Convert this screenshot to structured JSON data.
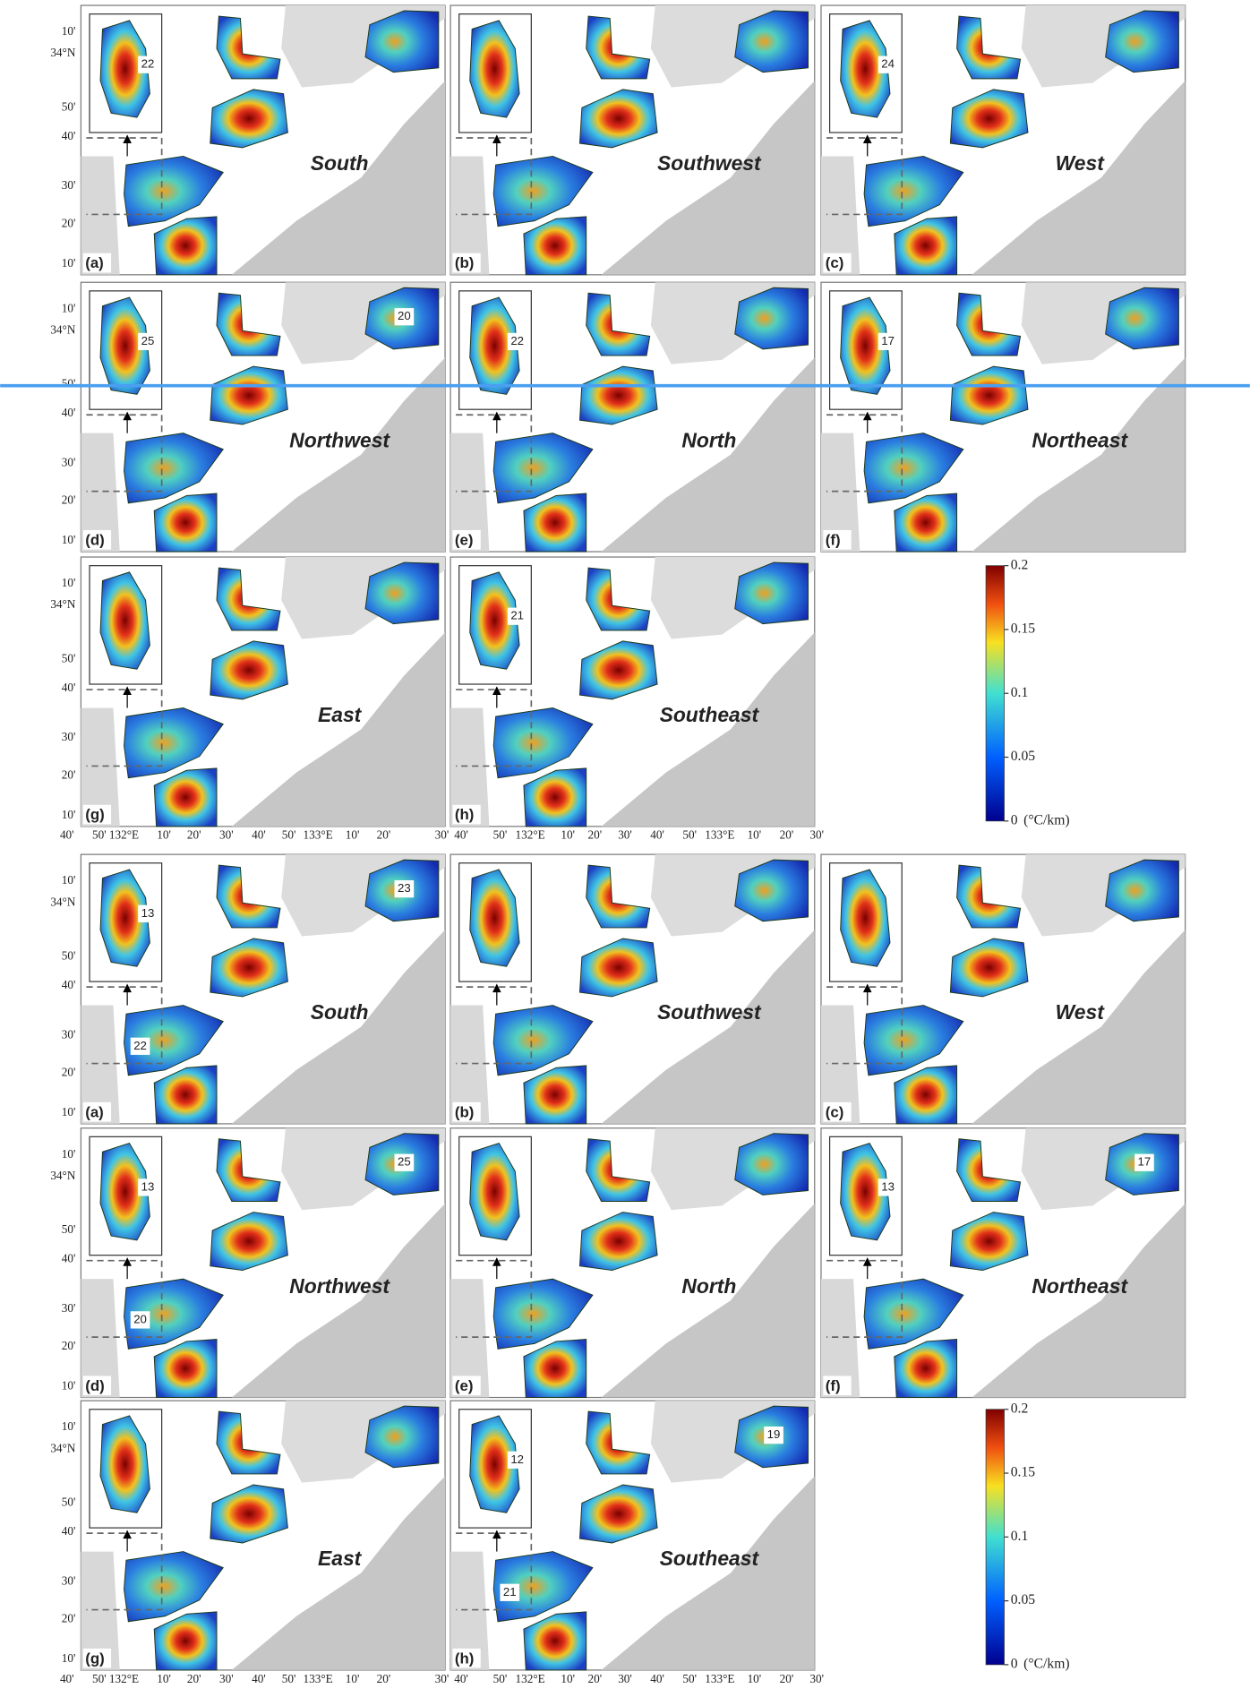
{
  "figures": [
    {
      "panels": [
        {
          "letter": "(a)",
          "direction": "South",
          "contour_labels": [
            "22"
          ]
        },
        {
          "letter": "(b)",
          "direction": "Southwest",
          "contour_labels": []
        },
        {
          "letter": "(c)",
          "direction": "West",
          "contour_labels": [
            "24"
          ]
        },
        {
          "letter": "(d)",
          "direction": "Northwest",
          "contour_labels": [
            "25",
            "20"
          ]
        },
        {
          "letter": "(e)",
          "direction": "North",
          "contour_labels": [
            "22"
          ]
        },
        {
          "letter": "(f)",
          "direction": "Northeast",
          "contour_labels": [
            "17"
          ]
        },
        {
          "letter": "(g)",
          "direction": "East",
          "contour_labels": []
        },
        {
          "letter": "(h)",
          "direction": "Southeast",
          "contour_labels": [
            "21"
          ]
        }
      ],
      "y_axis_labels": [
        "10'",
        "34°N",
        "50'",
        "40'",
        "30'",
        "20'",
        "10'"
      ],
      "x_axis_labels": [
        "40'",
        "50'",
        "132°E",
        "10'",
        "20'",
        "30'",
        "40'",
        "50'",
        "133°E",
        "10'",
        "20'",
        "30'"
      ],
      "colorbar": {
        "ticks": [
          0.2,
          0.15,
          0.1,
          0.05,
          0
        ],
        "unit": "(°C/km)"
      }
    },
    {
      "panels": [
        {
          "letter": "(a)",
          "direction": "South",
          "contour_labels": [
            "13",
            "23",
            "22"
          ]
        },
        {
          "letter": "(b)",
          "direction": "Southwest",
          "contour_labels": []
        },
        {
          "letter": "(c)",
          "direction": "West",
          "contour_labels": []
        },
        {
          "letter": "(d)",
          "direction": "Northwest",
          "contour_labels": [
            "13",
            "25",
            "20"
          ]
        },
        {
          "letter": "(e)",
          "direction": "North",
          "contour_labels": []
        },
        {
          "letter": "(f)",
          "direction": "Northeast",
          "contour_labels": [
            "13",
            "17"
          ]
        },
        {
          "letter": "(g)",
          "direction": "East",
          "contour_labels": []
        },
        {
          "letter": "(h)",
          "direction": "Southeast",
          "contour_labels": [
            "12",
            "19",
            "21"
          ]
        }
      ],
      "y_axis_labels": [
        "10'",
        "34°N",
        "50'",
        "40'",
        "30'",
        "20'",
        "10'"
      ],
      "x_axis_labels": [
        "40'",
        "50'",
        "132°E",
        "10'",
        "20'",
        "30'",
        "40'",
        "50'",
        "133°E",
        "10'",
        "20'",
        "30'"
      ],
      "colorbar": {
        "ticks": [
          0.2,
          0.15,
          0.1,
          0.05,
          0
        ],
        "unit": "(°C/km)"
      }
    }
  ]
}
